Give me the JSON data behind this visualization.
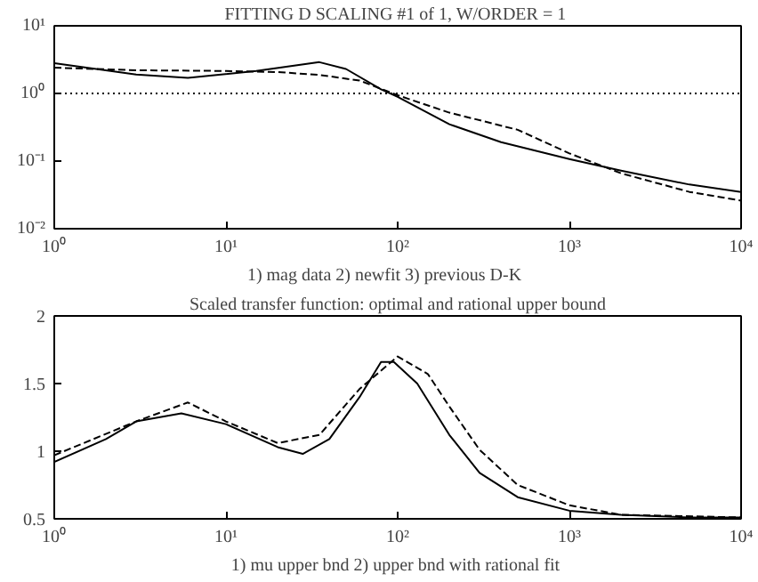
{
  "chart_data": [
    {
      "type": "line",
      "title": "FITTING D SCALING #1 of 1,  W/ORDER = 1",
      "xlabel": "1) mag data    2) newfit    3) previous D-K",
      "log": "xy",
      "grid": false,
      "xlim": [
        1,
        10000
      ],
      "ylim": [
        0.01,
        10
      ],
      "xticks": [
        {
          "value": 1,
          "label": "10⁰"
        },
        {
          "value": 10,
          "label": "10¹"
        },
        {
          "value": 100,
          "label": "10²"
        },
        {
          "value": 1000,
          "label": "10³"
        },
        {
          "value": 10000,
          "label": "10⁴"
        }
      ],
      "yticks": [
        {
          "value": 0.01,
          "label": "10⁻²"
        },
        {
          "value": 0.1,
          "label": "10⁻¹"
        },
        {
          "value": 1,
          "label": "10⁰"
        },
        {
          "value": 10,
          "label": "10¹"
        }
      ],
      "series": [
        {
          "color": "#000000",
          "line_style": "solid",
          "x": [
            1,
            3,
            6,
            15,
            35,
            50,
            80,
            100,
            200,
            400,
            1000,
            2000,
            5000,
            10000
          ],
          "values": [
            2.8,
            1.9,
            1.7,
            2.15,
            2.9,
            2.3,
            1.15,
            0.89,
            0.35,
            0.19,
            0.107,
            0.072,
            0.045,
            0.035
          ]
        },
        {
          "color": "#000000",
          "line_style": "dashed",
          "x": [
            1,
            3,
            10,
            20,
            35,
            60,
            100,
            200,
            500,
            1000,
            2000,
            5000,
            10000
          ],
          "values": [
            2.4,
            2.2,
            2.15,
            2.07,
            1.88,
            1.55,
            0.94,
            0.52,
            0.29,
            0.13,
            0.066,
            0.035,
            0.026
          ]
        },
        {
          "color": "#000000",
          "line_style": "dotted",
          "x": [
            1,
            10000
          ],
          "values": [
            1,
            1
          ]
        }
      ]
    },
    {
      "type": "line",
      "title": "Scaled transfer function: optimal and rational upper bound",
      "xlabel": "1) mu upper bnd  2) upper bnd with rational fit",
      "log": "x",
      "grid": false,
      "xlim": [
        1,
        10000
      ],
      "ylim": [
        0.5,
        2
      ],
      "xticks": [
        {
          "value": 1,
          "label": "10⁰"
        },
        {
          "value": 10,
          "label": "10¹"
        },
        {
          "value": 100,
          "label": "10²"
        },
        {
          "value": 1000,
          "label": "10³"
        },
        {
          "value": 10000,
          "label": "10⁴"
        }
      ],
      "yticks": [
        0.5,
        1,
        1.5,
        2
      ],
      "series": [
        {
          "color": "#000000",
          "line_style": "solid",
          "x": [
            1,
            2,
            3,
            5.5,
            10,
            20,
            28,
            40,
            60,
            80,
            95,
            130,
            200,
            300,
            500,
            1000,
            2000,
            5000,
            10000
          ],
          "values": [
            0.92,
            1.09,
            1.22,
            1.28,
            1.2,
            1.03,
            0.98,
            1.09,
            1.4,
            1.66,
            1.66,
            1.5,
            1.12,
            0.84,
            0.66,
            0.56,
            0.53,
            0.51,
            0.51
          ]
        },
        {
          "color": "#000000",
          "line_style": "dashed",
          "x": [
            1,
            3,
            6,
            10,
            20,
            35,
            60,
            100,
            150,
            200,
            300,
            500,
            1000,
            2000,
            10000
          ],
          "values": [
            0.97,
            1.22,
            1.36,
            1.22,
            1.06,
            1.12,
            1.46,
            1.7,
            1.57,
            1.33,
            1.01,
            0.75,
            0.6,
            0.53,
            0.51
          ]
        }
      ]
    }
  ]
}
